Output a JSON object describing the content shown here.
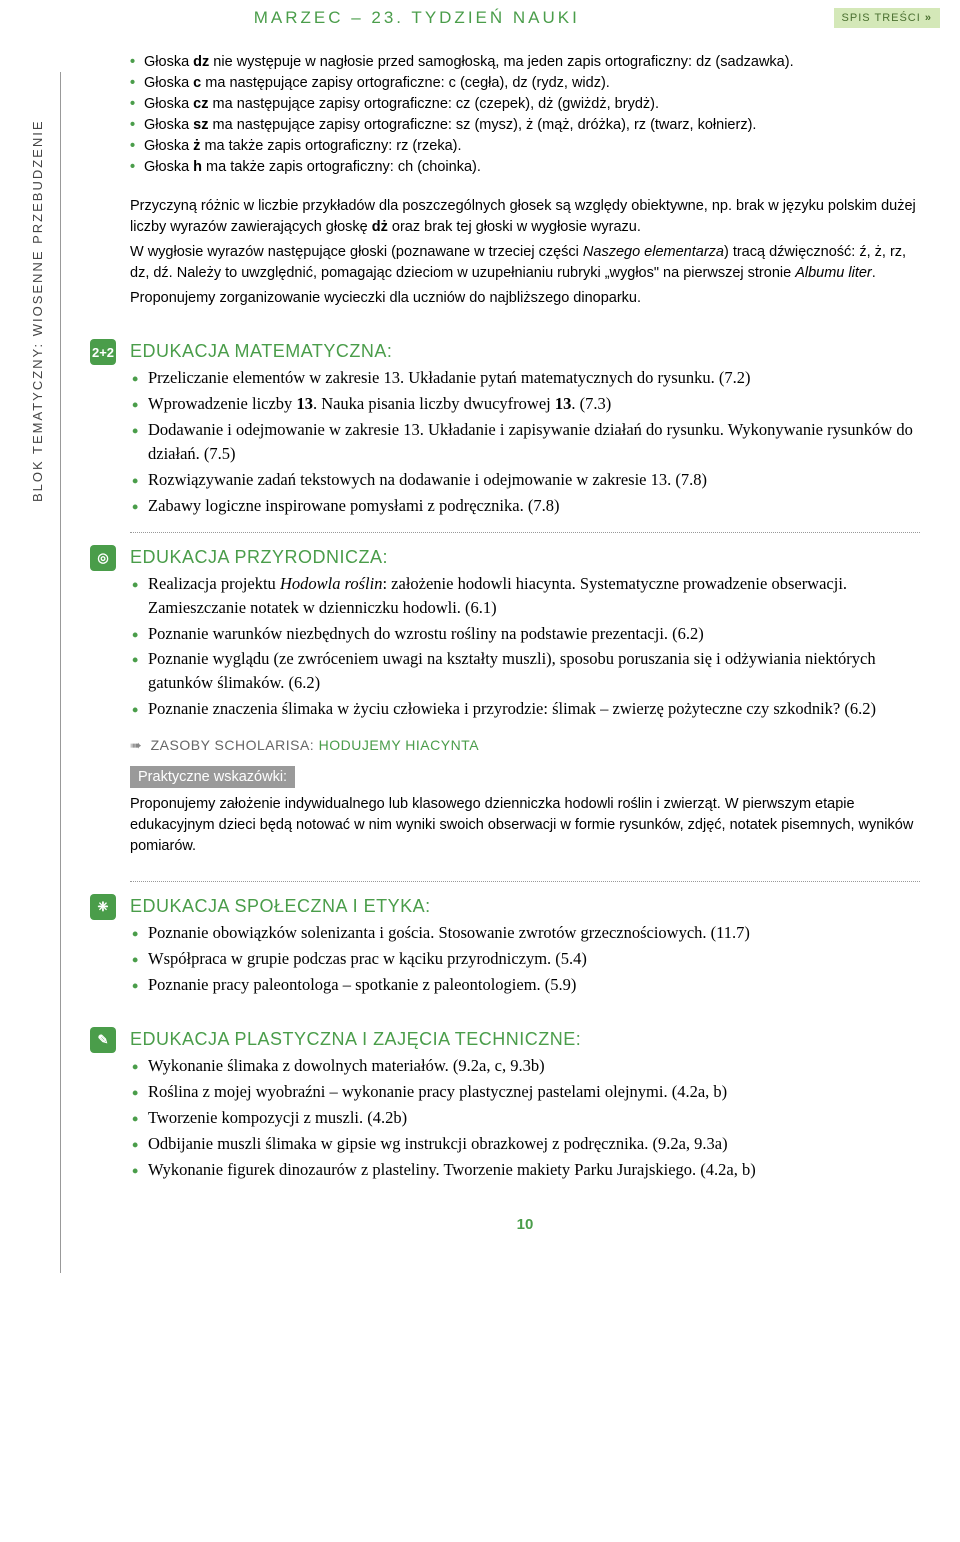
{
  "header": {
    "title": "MARZEC – 23. TYDZIEŃ NAUKI",
    "toc_label": "SPIS TREŚCI",
    "toc_arrow": "»"
  },
  "side_label": "BLOK TEMATYCZNY: WIOSENNE PRZEBUDZENIE",
  "intro": {
    "bullets": [
      "Głoska <strong>dz</strong> nie występuje w nagłosie przed samogłoską, ma jeden zapis ortograficzny: dz (sadzawka).",
      "Głoska <strong>c</strong> ma następujące zapisy ortograficzne: c (cegła), dz (rydz, widz).",
      "Głoska <strong>cz</strong> ma następujące zapisy ortograficzne: cz (czepek), dż (gwiżdż, brydż).",
      "Głoska <strong>sz</strong> ma następujące zapisy ortograficzne: sz (mysz), ż (mąż, dróżka), rz (twarz, kołnierz).",
      "Głoska <strong>ż</strong> ma także zapis ortograficzny: rz (rzeka).",
      "Głoska <strong>h</strong> ma także zapis ortograficzny: ch (choinka)."
    ],
    "paragraphs": [
      "Przyczyną różnic w liczbie przykładów dla poszczególnych głosek są względy obiektywne, np. brak w języku polskim dużej liczby wyrazów zawierających głoskę <strong>dż</strong> oraz brak tej głoski w wygłosie wyrazu.",
      "W wygłosie wyrazów następujące głoski (poznawane w trzeciej części <em>Naszego elementarza</em>) tracą dźwięczność: ź, ż, rz, dz, dź. Należy to uwzględnić, pomagając dzieciom w uzupełnianiu rubryki „wygłos\" na pierwszej stronie <em>Albumu liter</em>.",
      "Proponujemy zorganizowanie wycieczki dla uczniów do najbliższego dinoparku."
    ]
  },
  "sections": {
    "math": {
      "icon": "2+2",
      "title": "EDUKACJA MATEMATYCZNA:",
      "items": [
        "Przeliczanie elementów w zakresie 13. Układanie pytań matematycznych do rysunku. (7.2)",
        "Wprowadzenie liczby <strong>13</strong>. Nauka pisania liczby dwucyfrowej <strong>13</strong>. (7.3)",
        "Dodawanie i odejmowanie w zakresie 13. Układanie i zapisywanie działań do rysunku. Wykonywanie rysunków do działań. (7.5)",
        "Rozwiązywanie zadań tekstowych na dodawanie i odejmowanie w zakresie 13. (7.8)",
        "Zabawy logiczne inspirowane pomysłami z podręcznika. (7.8)"
      ]
    },
    "nature": {
      "icon": "◎",
      "title": "EDUKACJA PRZYRODNICZA:",
      "items": [
        "Realizacja projektu <em>Hodowla roślin</em>: założenie hodowli hiacynta. Systematyczne prowadzenie obserwacji. Zamieszczanie notatek w dzienniczku hodowli. (6.1)",
        "Poznanie warunków niezbędnych do wzrostu rośliny na podstawie prezentacji. (6.2)",
        "Poznanie wyglądu (ze zwróceniem uwagi na kształty muszli), sposobu poruszania się i odżywiania niektórych gatunków ślimaków. (6.2)",
        "Poznanie znaczenia ślimaka w życiu człowieka i przyrodzie: ślimak – zwierzę pożyteczne czy szkodnik? (6.2)"
      ],
      "resource_prefix": "ZASOBY SCHOLARISA:",
      "resource_link": "HODUJEMY HIACYNTA",
      "tips_label": "Praktyczne wskazówki:",
      "tips_text": "Proponujemy założenie indywidualnego lub klasowego dzienniczka hodowli roślin i zwierząt. W pierwszym etapie edukacyjnym dzieci będą notować w nim wyniki swoich obserwacji w formie rysunków, zdjęć, notatek pisemnych, wyników pomiarów."
    },
    "social": {
      "icon": "❈",
      "title": "EDUKACJA SPOŁECZNA I ETYKA:",
      "items": [
        "Poznanie obowiązków solenizanta i gościa. Stosowanie zwrotów grzecznościowych. (11.7)",
        "Współpraca w grupie podczas prac w kąciku przyrodniczym. (5.4)",
        "Poznanie pracy paleontologa – spotkanie z paleontologiem. (5.9)"
      ]
    },
    "art": {
      "icon": "✎",
      "title": "EDUKACJA PLASTYCZNA I ZAJĘCIA TECHNICZNE:",
      "items": [
        "Wykonanie ślimaka z dowolnych materiałów. (9.2a, c, 9.3b)",
        "Roślina z mojej wyobraźni – wykonanie pracy plastycznej pastelami olejnymi. (4.2a, b)",
        "Tworzenie kompozycji z muszli. (4.2b)",
        "Odbijanie muszli ślimaka w gipsie wg instrukcji obrazkowej z podręcznika. (9.2a, 9.3a)",
        "Wykonanie figurek dinozaurów z plasteliny. Tworzenie makiety Parku Jurajskiego. (4.2a, b)"
      ]
    }
  },
  "page_number": "10",
  "colors": {
    "accent": "#4a9d4a",
    "toc_bg": "#d4e8b8",
    "tips_bg": "#9a9a9a"
  }
}
